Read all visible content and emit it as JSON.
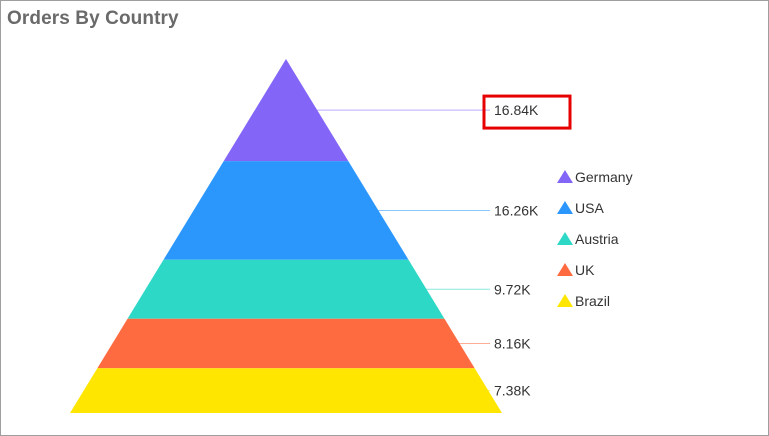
{
  "chart_data": {
    "type": "pyramid",
    "title": "Orders By Country",
    "categories": [
      "Germany",
      "USA",
      "Austria",
      "UK",
      "Brazil"
    ],
    "values": [
      16840,
      16260,
      9720,
      8160,
      7380
    ],
    "data_labels": [
      "16.84K",
      "16.26K",
      "9.72K",
      "8.16K",
      "7.38K"
    ],
    "colors": [
      "#8366f8",
      "#2b97fd",
      "#2ed8c6",
      "#ff6b40",
      "#ffe600"
    ],
    "legend": {
      "position": "right",
      "items": [
        {
          "label": "Germany",
          "color": "#8366f8"
        },
        {
          "label": "USA",
          "color": "#2b97fd"
        },
        {
          "label": "Austria",
          "color": "#2ed8c6"
        },
        {
          "label": "UK",
          "color": "#ff6b40"
        },
        {
          "label": "Brazil",
          "color": "#ffe600"
        }
      ]
    },
    "highlight_color": "#e60000"
  }
}
